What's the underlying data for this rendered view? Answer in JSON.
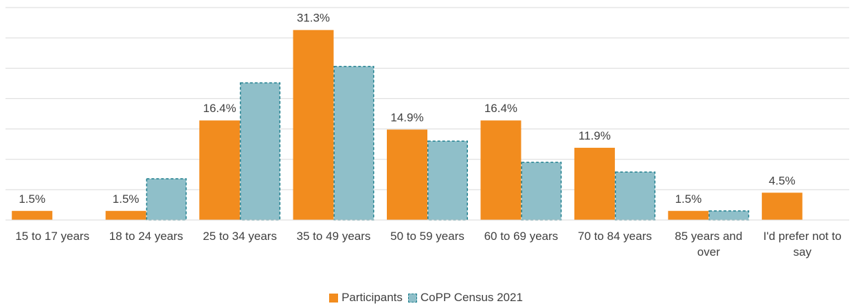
{
  "chart_data": {
    "type": "bar",
    "categories": [
      "15 to 17 years",
      "18 to 24 years",
      "25 to 34 years",
      "35 to 49 years",
      "50 to 59 years",
      "60 to 69 years",
      "70 to 84 years",
      "85 years and over",
      "I'd prefer not to say"
    ],
    "series": [
      {
        "name": "Participants",
        "color": "#f28c1e",
        "values": [
          1.5,
          1.5,
          16.4,
          31.3,
          14.9,
          16.4,
          11.9,
          1.5,
          4.5
        ],
        "value_labels": [
          "1.5%",
          "1.5%",
          "16.4%",
          "31.3%",
          "14.9%",
          "16.4%",
          "11.9%",
          "1.5%",
          "4.5%"
        ]
      },
      {
        "name": "CoPP Census 2021",
        "color": "#8fbfc9",
        "edge_color": "#1f7f8e",
        "dashed": true,
        "values": [
          null,
          6.8,
          22.6,
          25.3,
          13.0,
          9.5,
          7.9,
          1.5,
          null
        ]
      }
    ],
    "ylim": [
      0,
      35
    ],
    "yticks": [
      0,
      5,
      10,
      15,
      20,
      25,
      30,
      35
    ],
    "grid": true,
    "legend": "bottom"
  }
}
